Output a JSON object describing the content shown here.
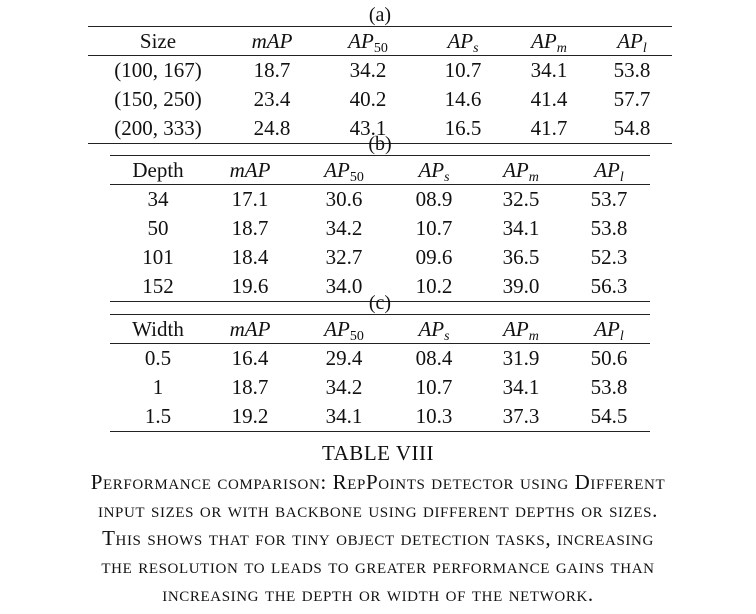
{
  "tables": [
    {
      "tag": "(a)",
      "first_col_header": "Size",
      "metric_headers": [
        {
          "base": "mAP",
          "sub": ""
        },
        {
          "base": "AP",
          "sub": "50"
        },
        {
          "base": "AP",
          "sub": "s"
        },
        {
          "base": "AP",
          "sub": "m"
        },
        {
          "base": "AP",
          "sub": "l"
        }
      ],
      "rows": [
        [
          "(100, 167)",
          "18.7",
          "34.2",
          "10.7",
          "34.1",
          "53.8"
        ],
        [
          "(150, 250)",
          "23.4",
          "40.2",
          "14.6",
          "41.4",
          "57.7"
        ],
        [
          "(200, 333)",
          "24.8",
          "43.1",
          "16.5",
          "41.7",
          "54.8"
        ]
      ]
    },
    {
      "tag": "(b)",
      "first_col_header": "Depth",
      "metric_headers": [
        {
          "base": "mAP",
          "sub": ""
        },
        {
          "base": "AP",
          "sub": "50"
        },
        {
          "base": "AP",
          "sub": "s"
        },
        {
          "base": "AP",
          "sub": "m"
        },
        {
          "base": "AP",
          "sub": "l"
        }
      ],
      "rows": [
        [
          "34",
          "17.1",
          "30.6",
          "08.9",
          "32.5",
          "53.7"
        ],
        [
          "50",
          "18.7",
          "34.2",
          "10.7",
          "34.1",
          "53.8"
        ],
        [
          "101",
          "18.4",
          "32.7",
          "09.6",
          "36.5",
          "52.3"
        ],
        [
          "152",
          "19.6",
          "34.0",
          "10.2",
          "39.0",
          "56.3"
        ]
      ]
    },
    {
      "tag": "(c)",
      "first_col_header": "Width",
      "metric_headers": [
        {
          "base": "mAP",
          "sub": ""
        },
        {
          "base": "AP",
          "sub": "50"
        },
        {
          "base": "AP",
          "sub": "s"
        },
        {
          "base": "AP",
          "sub": "m"
        },
        {
          "base": "AP",
          "sub": "l"
        }
      ],
      "rows": [
        [
          "0.5",
          "16.4",
          "29.4",
          "08.4",
          "31.9",
          "50.6"
        ],
        [
          "1",
          "18.7",
          "34.2",
          "10.7",
          "34.1",
          "53.8"
        ],
        [
          "1.5",
          "19.2",
          "34.1",
          "10.3",
          "37.3",
          "54.5"
        ]
      ]
    }
  ],
  "caption": {
    "title": "TABLE VIII",
    "lines": [
      "Performance comparison: RepPoints detector using Different",
      "input sizes or with backbone using different depths or sizes.",
      "This shows that for tiny object detection tasks, increasing",
      "the resolution to leads to greater performance gains than",
      "increasing the depth or width of the network."
    ]
  }
}
